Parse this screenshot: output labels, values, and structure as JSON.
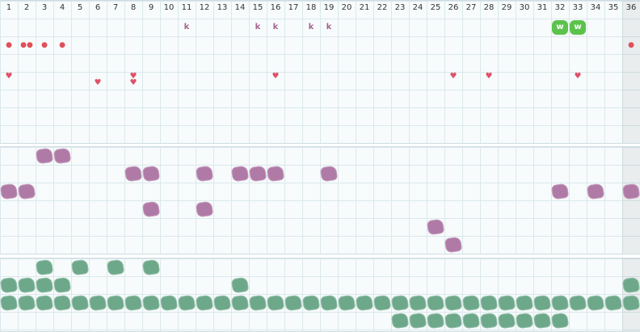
{
  "columns": [
    "1",
    "2",
    "3",
    "4",
    "5",
    "6",
    "7",
    "8",
    "9",
    "10",
    "11",
    "12",
    "13",
    "14",
    "15",
    "16",
    "17",
    "18",
    "19",
    "20",
    "21",
    "22",
    "23",
    "24",
    "25",
    "26",
    "27",
    "28",
    "29",
    "30",
    "31",
    "32",
    "33",
    "34",
    "35",
    "36"
  ],
  "highlight_column": 36,
  "colors": {
    "k_letter": "#a5678f",
    "drop": "#e0505a",
    "heart": "#e0506a",
    "w_badge": "#5cc24c",
    "purple_blob": "#b07aa6",
    "green_blob": "#6ea88a",
    "grid_line": "#dbe8ec",
    "panel_bg": "#f7fbfc"
  },
  "top_panel": {
    "k_marks": {
      "label": "k",
      "columns": [
        11,
        15,
        16,
        18,
        19
      ]
    },
    "w_badges": {
      "label": "w",
      "columns": [
        32,
        33
      ]
    },
    "drops": [
      {
        "col": 1,
        "count": 1
      },
      {
        "col": 2,
        "count": 2
      },
      {
        "col": 3,
        "count": 1
      },
      {
        "col": 4,
        "count": 1
      },
      {
        "col": 36,
        "count": 1
      }
    ],
    "hearts_row1": [
      1,
      8,
      16,
      26,
      28,
      33
    ],
    "hearts_row2": [
      6,
      8
    ]
  },
  "purple_panel": {
    "rows": [
      [
        3,
        4
      ],
      [
        8,
        9,
        12,
        14,
        15,
        16,
        19
      ],
      [
        1,
        2,
        32,
        34,
        36
      ],
      [
        9,
        12
      ],
      [
        25
      ],
      [
        26
      ]
    ]
  },
  "green_panel": {
    "rows": [
      [
        3,
        5,
        7,
        9
      ],
      [
        1,
        2,
        3,
        4,
        14,
        36
      ],
      [
        1,
        2,
        3,
        4,
        5,
        6,
        7,
        8,
        9,
        10,
        11,
        12,
        13,
        14,
        15,
        16,
        17,
        18,
        19,
        20,
        21,
        22,
        23,
        24,
        25,
        26,
        27,
        28,
        29,
        30,
        31,
        32,
        33,
        34,
        35,
        36
      ],
      [
        23,
        24,
        25,
        26,
        27,
        28,
        29,
        30,
        31,
        32
      ]
    ]
  }
}
